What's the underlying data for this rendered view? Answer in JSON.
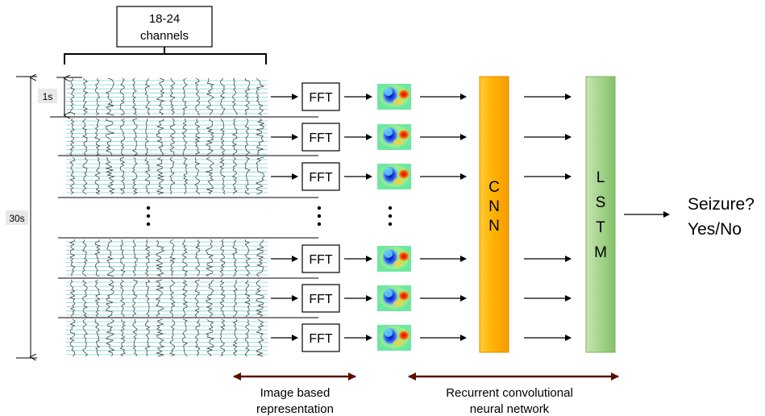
{
  "channels_box": {
    "line1": "18-24",
    "line2": "channels"
  },
  "time_labels": {
    "one_second": "1s",
    "thirty_seconds": "30s"
  },
  "fft_label": "FFT",
  "cnn_letters": [
    "C",
    "N",
    "N"
  ],
  "lstm_letters": [
    "L",
    "S",
    "T",
    "M"
  ],
  "output": {
    "line1": "Seizure?",
    "line2": "Yes/No"
  },
  "brackets": {
    "image": {
      "line1": "Image based",
      "line2": "representation"
    },
    "rcnn": {
      "line1": "Recurrent convolutional",
      "line2": "neural network"
    }
  },
  "colors": {
    "cnn_fill": "#ffb000",
    "lstm_fill": "#93c47d",
    "bracket": "#5b0f00",
    "signal_grid": "#7fd1d4"
  },
  "icons": {
    "heatmap": "heatmap-thumbnail-icon",
    "eeg": "eeg-signal-icon"
  }
}
